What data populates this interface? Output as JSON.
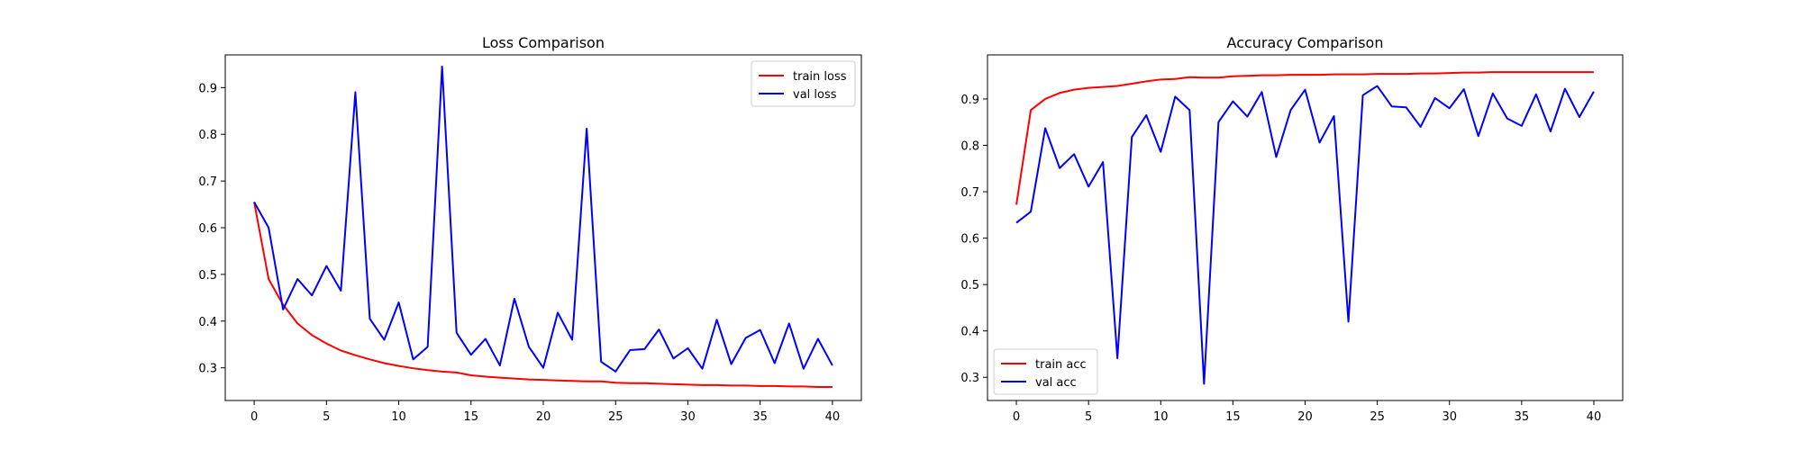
{
  "chart_data": [
    {
      "type": "line",
      "title": "Loss Comparison",
      "xlabel": "",
      "ylabel": "",
      "xlim": [
        -2,
        42
      ],
      "ylim": [
        0.23,
        0.97
      ],
      "xticks": [
        0,
        5,
        10,
        15,
        20,
        25,
        30,
        35,
        40
      ],
      "yticks": [
        0.3,
        0.4,
        0.5,
        0.6,
        0.7,
        0.8,
        0.9
      ],
      "grid": false,
      "legend_position": "top-right",
      "x": [
        0,
        1,
        2,
        3,
        4,
        5,
        6,
        7,
        8,
        9,
        10,
        11,
        12,
        13,
        14,
        15,
        16,
        17,
        18,
        19,
        20,
        21,
        22,
        23,
        24,
        25,
        26,
        27,
        28,
        29,
        30,
        31,
        32,
        33,
        34,
        35,
        36,
        37,
        38,
        39,
        40
      ],
      "series": [
        {
          "name": "train loss",
          "color": "#ff0000",
          "values": [
            0.655,
            0.49,
            0.435,
            0.395,
            0.37,
            0.352,
            0.337,
            0.327,
            0.318,
            0.31,
            0.304,
            0.299,
            0.295,
            0.292,
            0.29,
            0.284,
            0.281,
            0.279,
            0.277,
            0.275,
            0.274,
            0.273,
            0.272,
            0.271,
            0.271,
            0.268,
            0.267,
            0.267,
            0.266,
            0.265,
            0.264,
            0.263,
            0.263,
            0.262,
            0.262,
            0.261,
            0.261,
            0.26,
            0.26,
            0.259,
            0.259
          ]
        },
        {
          "name": "val loss",
          "color": "#0000ff",
          "values": [
            0.655,
            0.6,
            0.425,
            0.49,
            0.455,
            0.518,
            0.465,
            0.89,
            0.405,
            0.36,
            0.44,
            0.318,
            0.345,
            0.945,
            0.375,
            0.328,
            0.362,
            0.305,
            0.448,
            0.345,
            0.3,
            0.418,
            0.36,
            0.812,
            0.313,
            0.292,
            0.338,
            0.34,
            0.382,
            0.32,
            0.342,
            0.298,
            0.403,
            0.308,
            0.364,
            0.381,
            0.31,
            0.395,
            0.298,
            0.362,
            0.305
          ]
        }
      ]
    },
    {
      "type": "line",
      "title": "Accuracy Comparison",
      "xlabel": "",
      "ylabel": "",
      "xlim": [
        -2,
        42
      ],
      "ylim": [
        0.25,
        0.995
      ],
      "xticks": [
        0,
        5,
        10,
        15,
        20,
        25,
        30,
        35,
        40
      ],
      "yticks": [
        0.3,
        0.4,
        0.5,
        0.6,
        0.7,
        0.8,
        0.9
      ],
      "grid": false,
      "legend_position": "bottom-left",
      "x": [
        0,
        1,
        2,
        3,
        4,
        5,
        6,
        7,
        8,
        9,
        10,
        11,
        12,
        13,
        14,
        15,
        16,
        17,
        18,
        19,
        20,
        21,
        22,
        23,
        24,
        25,
        26,
        27,
        28,
        29,
        30,
        31,
        32,
        33,
        34,
        35,
        36,
        37,
        38,
        39,
        40
      ],
      "series": [
        {
          "name": "train acc",
          "color": "#ff0000",
          "values": [
            0.672,
            0.876,
            0.9,
            0.913,
            0.92,
            0.924,
            0.926,
            0.928,
            0.933,
            0.938,
            0.942,
            0.943,
            0.947,
            0.946,
            0.946,
            0.949,
            0.95,
            0.951,
            0.951,
            0.952,
            0.952,
            0.952,
            0.953,
            0.953,
            0.953,
            0.954,
            0.954,
            0.954,
            0.955,
            0.955,
            0.956,
            0.957,
            0.957,
            0.958,
            0.958,
            0.958,
            0.958,
            0.958,
            0.958,
            0.958,
            0.958
          ]
        },
        {
          "name": "val acc",
          "color": "#0000ff",
          "values": [
            0.633,
            0.657,
            0.837,
            0.751,
            0.781,
            0.711,
            0.764,
            0.341,
            0.818,
            0.865,
            0.786,
            0.905,
            0.876,
            0.286,
            0.85,
            0.895,
            0.862,
            0.915,
            0.775,
            0.876,
            0.92,
            0.806,
            0.863,
            0.42,
            0.908,
            0.928,
            0.884,
            0.882,
            0.84,
            0.902,
            0.88,
            0.921,
            0.82,
            0.912,
            0.858,
            0.842,
            0.91,
            0.83,
            0.922,
            0.861,
            0.916
          ]
        }
      ]
    }
  ]
}
